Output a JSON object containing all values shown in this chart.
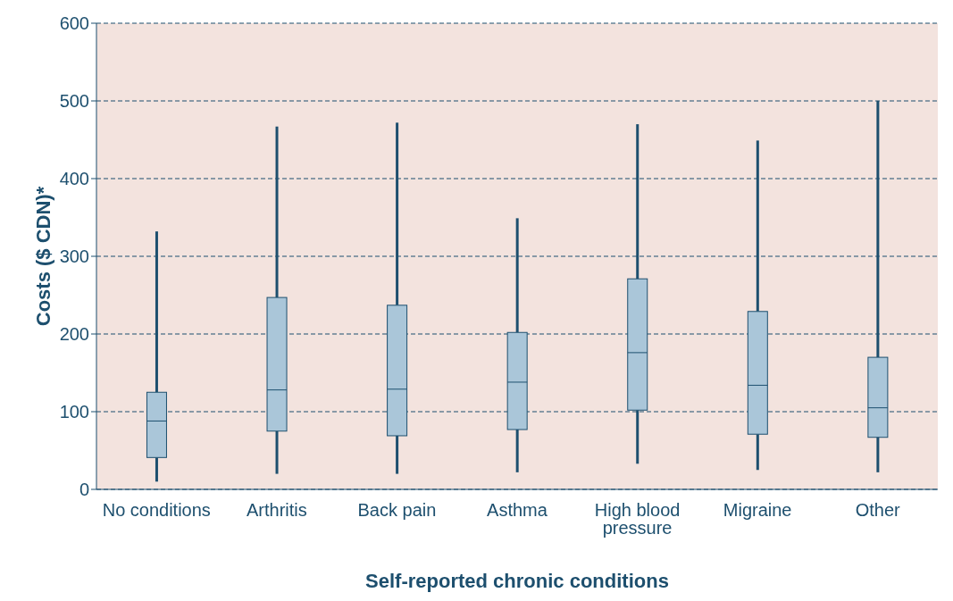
{
  "chart_data": {
    "type": "box",
    "xlabel": "Self-reported chronic conditions",
    "ylabel": "Costs ($ CDN)*",
    "categories": [
      "No conditions",
      "Arthritis",
      "Back pain",
      "Asthma",
      "High blood pressure",
      "Migraine",
      "Other"
    ],
    "boxes": [
      {
        "low": 10,
        "q1": 41,
        "median": 88,
        "q3": 125,
        "high": 332
      },
      {
        "low": 20,
        "q1": 75,
        "median": 128,
        "q3": 247,
        "high": 467
      },
      {
        "low": 20,
        "q1": 69,
        "median": 129,
        "q3": 237,
        "high": 472
      },
      {
        "low": 22,
        "q1": 77,
        "median": 138,
        "q3": 202,
        "high": 349
      },
      {
        "low": 33,
        "q1": 102,
        "median": 176,
        "q3": 271,
        "high": 470
      },
      {
        "low": 25,
        "q1": 71,
        "median": 134,
        "q3": 229,
        "high": 449
      },
      {
        "low": 22,
        "q1": 67,
        "median": 105,
        "q3": 170,
        "high": 500
      }
    ],
    "color": "#aac6d9",
    "ylim": [
      0,
      600
    ],
    "yticks": [
      0,
      100,
      200,
      300,
      400,
      500,
      600
    ],
    "grid": "y",
    "legend": false
  }
}
